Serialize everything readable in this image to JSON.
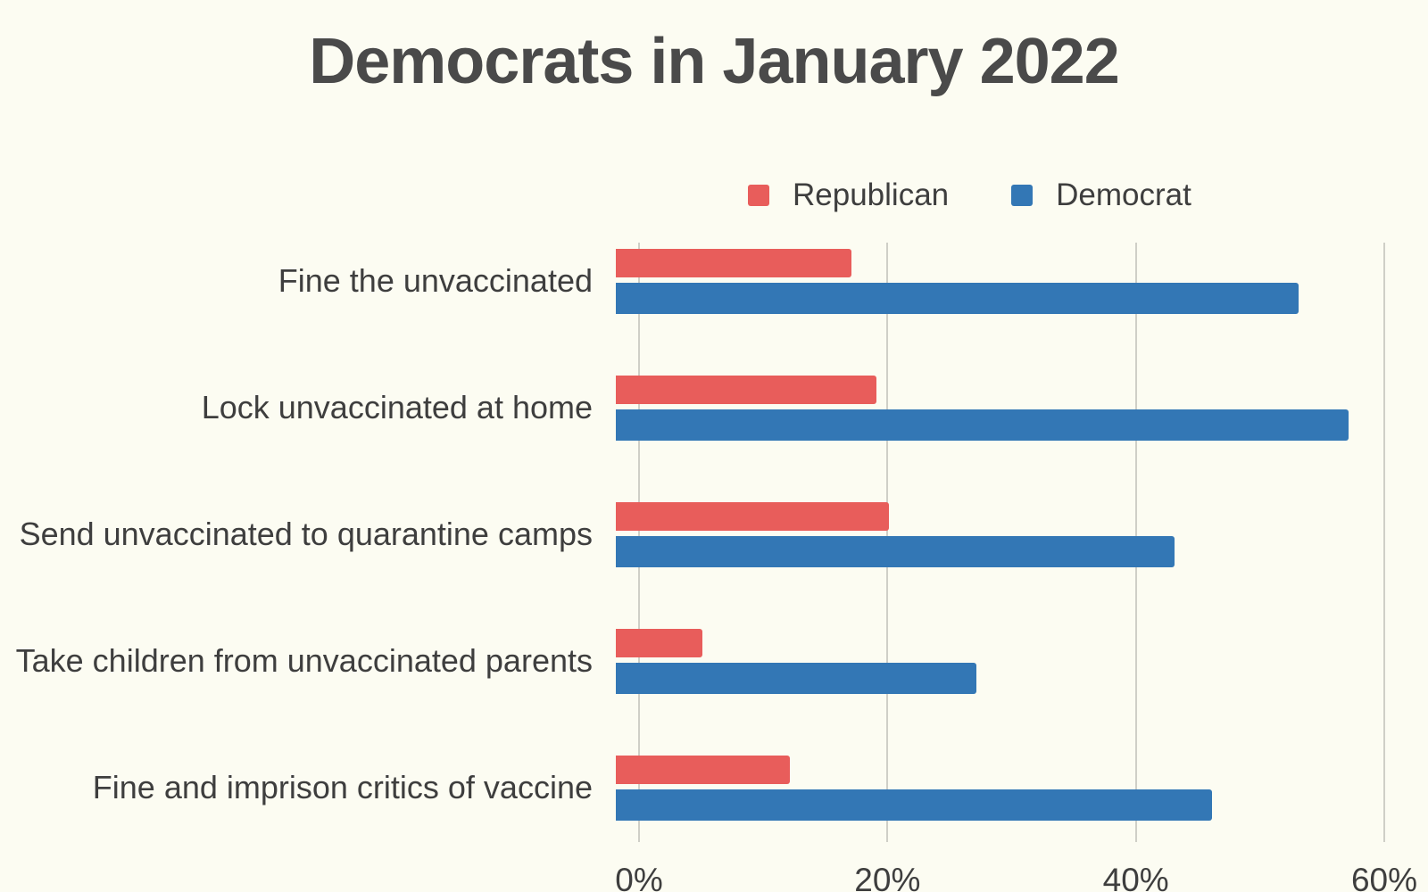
{
  "title": "Democrats in January 2022",
  "colors": {
    "background": "#FCFCF2",
    "title_text": "#4A4A4A",
    "label_text": "#3E3E3E",
    "gridline": "#CFCFC7",
    "republican": "#E85D5B",
    "democrat": "#3377B5"
  },
  "chart_data": {
    "type": "bar",
    "orientation": "horizontal",
    "title": "Democrats in January 2022",
    "categories": [
      "Fine the unvaccinated",
      "Lock unvaccinated at home",
      "Send unvaccinated to quarantine camps",
      "Take children from unvaccinated parents",
      "Fine and imprison critics of vaccine"
    ],
    "series": [
      {
        "name": "Republican",
        "color": "#E85D5B",
        "values": [
          19,
          21,
          22,
          7,
          14
        ]
      },
      {
        "name": "Democrat",
        "color": "#3377B5",
        "values": [
          55,
          59,
          45,
          29,
          48
        ]
      }
    ],
    "value_unit": "%",
    "xlim": [
      0,
      60
    ],
    "x_ticks": [
      {
        "value": 0,
        "label": "0%"
      },
      {
        "value": 20,
        "label": "20%"
      },
      {
        "value": 40,
        "label": "40%"
      },
      {
        "value": 60,
        "label": "60%"
      }
    ],
    "grid": "vertical-only",
    "legend_position": "top"
  }
}
